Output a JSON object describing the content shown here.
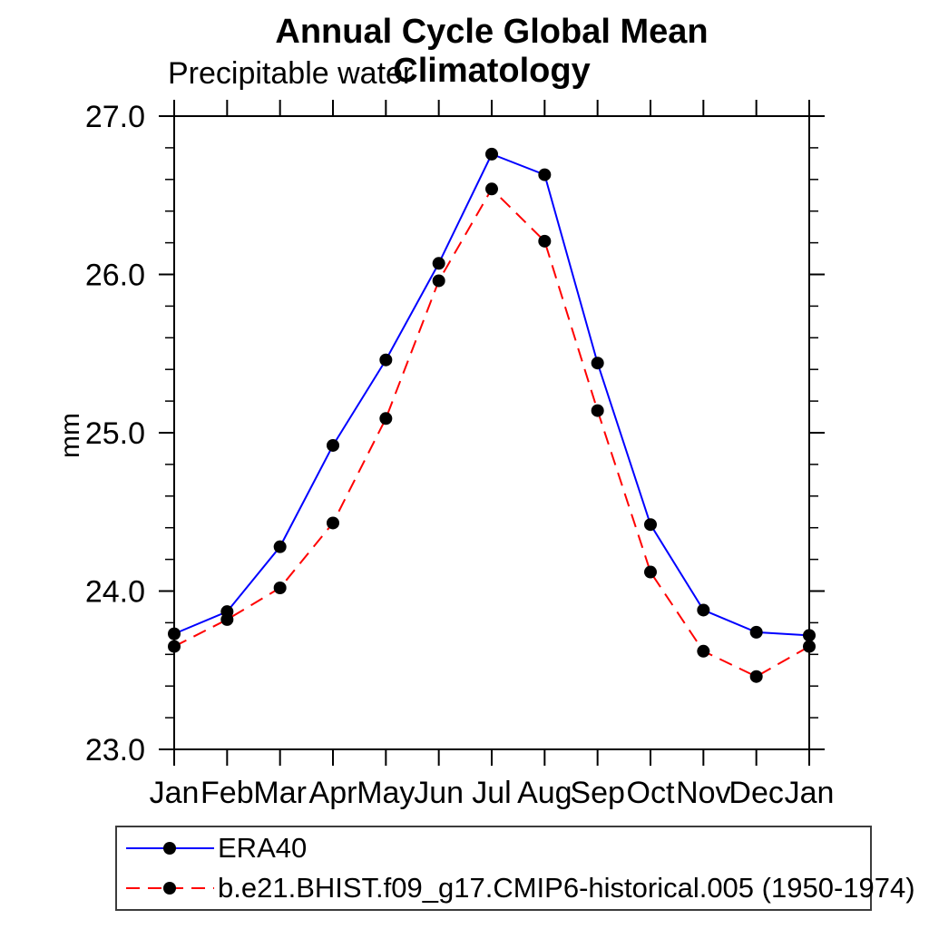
{
  "chart_data": {
    "type": "line",
    "title": "Annual Cycle Global Mean Climatology",
    "subtitle": "Precipitable water",
    "ylabel": "mm",
    "categories": [
      "Jan",
      "Feb",
      "Mar",
      "Apr",
      "May",
      "Jun",
      "Jul",
      "Aug",
      "Sep",
      "Oct",
      "Nov",
      "Dec",
      "Jan"
    ],
    "series": [
      {
        "name": "ERA40",
        "color": "#0000ff",
        "style": "solid",
        "values": [
          23.73,
          23.87,
          24.28,
          24.92,
          25.46,
          26.07,
          26.76,
          26.63,
          25.44,
          24.42,
          23.88,
          23.74,
          23.72
        ]
      },
      {
        "name": "b.e21.BHIST.f09_g17.CMIP6-historical.005 (1950-1974)",
        "color": "#ff0000",
        "style": "dashed",
        "values": [
          23.65,
          23.82,
          24.02,
          24.43,
          25.09,
          25.96,
          26.54,
          26.21,
          25.14,
          24.12,
          23.62,
          23.46,
          23.65
        ]
      }
    ],
    "ylim": [
      23.0,
      27.0
    ],
    "ytick_major": 1.0,
    "ytick_minor": 0.2,
    "ytick_labels": [
      "23.0",
      "24.0",
      "25.0",
      "26.0",
      "27.0"
    ],
    "marker": {
      "shape": "circle",
      "color": "#000000",
      "radius": 7
    },
    "grid": false,
    "legend_position": "bottom",
    "axis_color": "#000000"
  }
}
